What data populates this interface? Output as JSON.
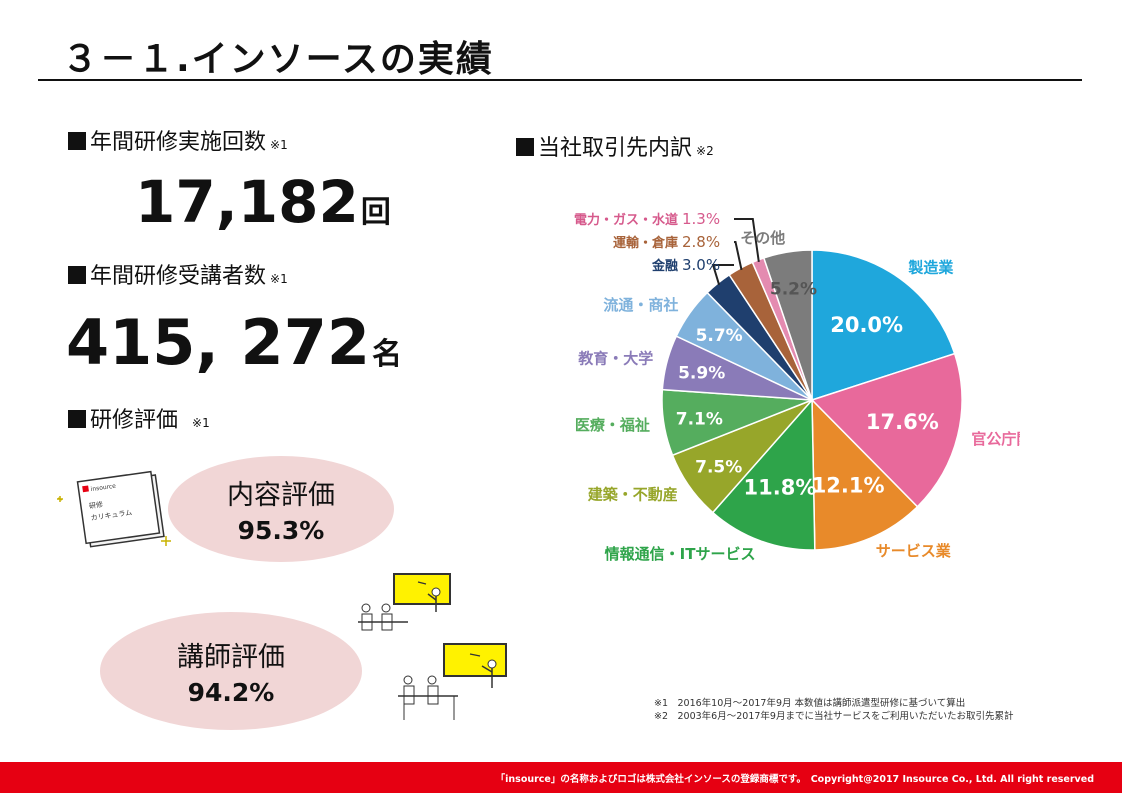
{
  "page": {
    "title": "３－１.インソースの実績"
  },
  "stats": {
    "training_count": {
      "label": "年間研修実施回数",
      "note": "※1",
      "value": "17,182",
      "unit": "回"
    },
    "attendee_count": {
      "label": "年間研修受講者数",
      "note": "※1",
      "value": "415, 272",
      "unit": "名"
    },
    "evaluation": {
      "label": "研修評価",
      "note": "※1"
    },
    "content_eval": {
      "label": "内容評価",
      "value": "95.3%"
    },
    "instructor_eval": {
      "label": "講師評価",
      "value": "94.2%"
    }
  },
  "icons": {
    "book": "curriculum-book-icon",
    "book_text": "研修\nカリキュラム",
    "book_brand": "insource",
    "classroom": "classroom-illustration-icon"
  },
  "pie_section": {
    "label": "当社取引先内訳",
    "note": "※2"
  },
  "chart_data": {
    "type": "pie",
    "title": "当社取引先内訳",
    "start_angle_deg": 0,
    "direction": "clockwise",
    "series": [
      {
        "name": "製造業",
        "value": 20.0,
        "label": "20.0%",
        "color": "#1fa7dc",
        "label_color": "#ffffff"
      },
      {
        "name": "官公庁関連",
        "value": 17.6,
        "label": "17.6%",
        "color": "#e8699b",
        "label_color": "#ffffff"
      },
      {
        "name": "サービス業",
        "value": 12.1,
        "label": "12.1%",
        "color": "#e88a2a",
        "label_color": "#ffffff"
      },
      {
        "name": "情報通信・ITサービス",
        "value": 11.8,
        "label": "11.8%",
        "color": "#2ea44a",
        "label_color": "#ffffff"
      },
      {
        "name": "建築・不動産",
        "value": 7.5,
        "label": "7.5%",
        "color": "#97a62a",
        "label_color": "#ffffff"
      },
      {
        "name": "医療・福祉",
        "value": 7.1,
        "label": "7.1%",
        "color": "#55ad5e",
        "label_color": "#ffffff"
      },
      {
        "name": "教育・大学",
        "value": 5.9,
        "label": "5.9%",
        "color": "#8a7bb8",
        "label_color": "#ffffff"
      },
      {
        "name": "流通・商社",
        "value": 5.7,
        "label": "5.7%",
        "color": "#7fb2dc",
        "label_color": "#ffffff"
      },
      {
        "name": "金融",
        "value": 3.0,
        "label": "3.0%",
        "color": "#1f3f6e",
        "label_color": "#1f3f6e"
      },
      {
        "name": "運輸・倉庫",
        "value": 2.8,
        "label": "2.8%",
        "color": "#a8633a",
        "label_color": "#a8633a"
      },
      {
        "name": "電力・ガス・水道",
        "value": 1.3,
        "label": "1.3%",
        "color": "#e48bb0",
        "label_color": "#d65a8c"
      },
      {
        "name": "その他",
        "value": 5.2,
        "label": "5.2%",
        "color": "#7c7c7c",
        "label_color": "#555555"
      }
    ]
  },
  "footnotes": [
    "※1　2016年10月～2017年9月 本数値は講師派遣型研修に基づいて算出",
    "※2　2003年6月～2017年9月までに当社サービスをご利用いただいたお取引先累計"
  ],
  "footer": {
    "text": "「insource」の名称およびロゴは株式会社インソースの登録商標です。　Copyright@2017 Insource Co., Ltd. All right reserved",
    "color": "#e60012"
  }
}
